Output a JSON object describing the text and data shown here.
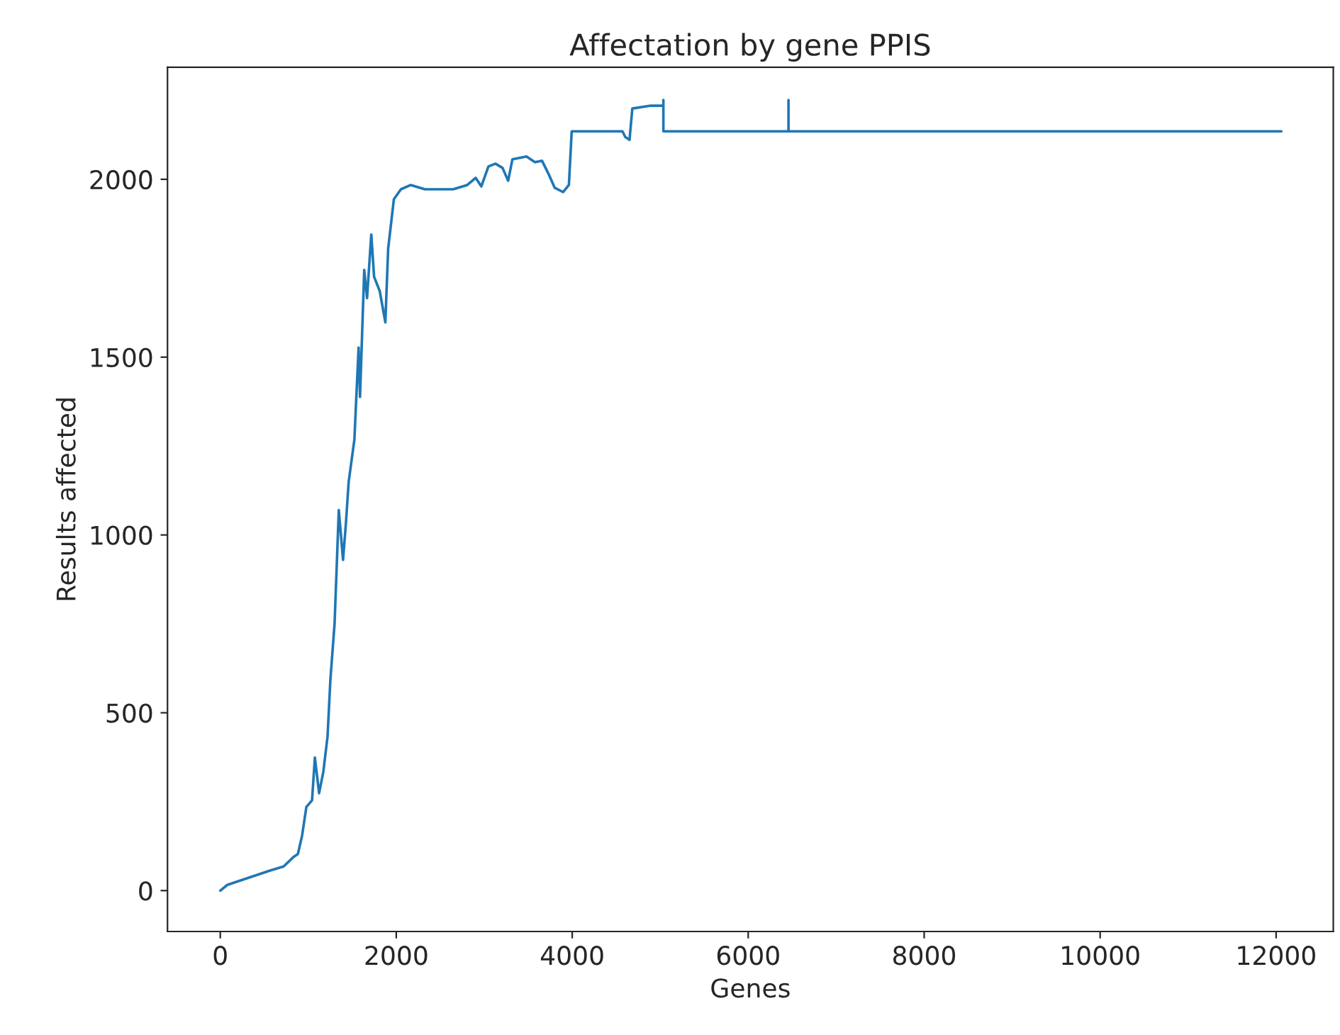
{
  "chart_data": {
    "type": "line",
    "title": "Affectation by gene PPIS",
    "xlabel": "Genes",
    "ylabel": "Results affected",
    "xlim": [
      -600,
      12650
    ],
    "ylim": [
      -115,
      2315
    ],
    "xticks": [
      0,
      2000,
      4000,
      6000,
      8000,
      10000,
      12000
    ],
    "yticks": [
      0,
      500,
      1000,
      1500,
      2000
    ],
    "grid": false,
    "legend": false,
    "series": [
      {
        "color": "#1f77b4",
        "x": [
          0,
          80,
          320,
          560,
          720,
          834,
          882,
          930,
          978,
          1043,
          1075,
          1123,
          1171,
          1219,
          1251,
          1299,
          1347,
          1395,
          1427,
          1459,
          1524,
          1572,
          1588,
          1636,
          1668,
          1716,
          1748,
          1812,
          1876,
          1908,
          1973,
          2053,
          2165,
          2325,
          2646,
          2807,
          2903,
          2967,
          3047,
          3127,
          3208,
          3272,
          3320,
          3480,
          3576,
          3657,
          3737,
          3801,
          3897,
          3962,
          3994,
          4090,
          4571,
          4603,
          4651,
          4683,
          4892,
          5036,
          5036,
          5036,
          6458,
          6458,
          6458,
          12060
        ],
        "values": [
          0,
          16,
          36,
          56,
          68,
          95,
          103,
          155,
          235,
          254,
          374,
          274,
          334,
          433,
          592,
          751,
          1070,
          930,
          1030,
          1149,
          1268,
          1527,
          1388,
          1745,
          1666,
          1845,
          1726,
          1686,
          1598,
          1805,
          1944,
          1972,
          1984,
          1972,
          1972,
          1984,
          2004,
          1980,
          2036,
          2044,
          2032,
          1996,
          2056,
          2064,
          2048,
          2052,
          2012,
          1976,
          1964,
          1984,
          2135,
          2135,
          2135,
          2119,
          2111,
          2199,
          2207,
          2207,
          2223,
          2135,
          2135,
          2223,
          2135,
          2135
        ]
      }
    ]
  }
}
